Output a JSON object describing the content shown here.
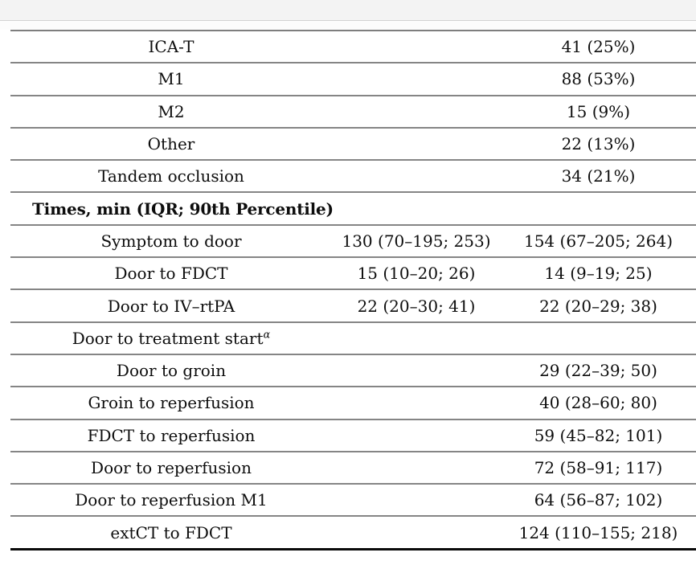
{
  "colors": {
    "rule": "#858585",
    "heavy_bottom_rule": "#0a0a0a",
    "top_band_bg": "#f3f3f3",
    "top_band_border": "#d2d2d2",
    "text": "#0d0d0d"
  },
  "table": {
    "section_header": "Times, min (IQR; 90th Percentile)",
    "rows": [
      {
        "label": "ICA-T",
        "col2": "",
        "col3": "41 (25%)"
      },
      {
        "label": "M1",
        "col2": "",
        "col3": "88 (53%)"
      },
      {
        "label": "M2",
        "col2": "",
        "col3": "15 (9%)"
      },
      {
        "label": "Other",
        "col2": "",
        "col3": "22 (13%)"
      },
      {
        "label": "Tandem occlusion",
        "col2": "",
        "col3": "34 (21%)"
      },
      {
        "label": "Times, min (IQR; 90th Percentile)",
        "col2": "",
        "col3": ""
      },
      {
        "label": "Symptom to door",
        "col2": "130 (70–195; 253)",
        "col3": "154 (67–205; 264)"
      },
      {
        "label": "Door to FDCT",
        "col2": "15 (10–20; 26)",
        "col3": "14 (9–19; 25)"
      },
      {
        "label": "Door to IV–rtPA",
        "col2": "22 (20–30; 41)",
        "col3": "22 (20–29; 38)"
      },
      {
        "label": "Door to treatment start",
        "sup": "α",
        "col2": "",
        "col3": ""
      },
      {
        "label": "Door to groin",
        "col2": "",
        "col3": "29 (22–39; 50)"
      },
      {
        "label": "Groin to reperfusion",
        "col2": "",
        "col3": "40 (28–60; 80)"
      },
      {
        "label": "FDCT to reperfusion",
        "col2": "",
        "col3": "59 (45–82; 101)"
      },
      {
        "label": "Door to reperfusion",
        "col2": "",
        "col3": "72 (58–91; 117)"
      },
      {
        "label": "Door to reperfusion M1",
        "col2": "",
        "col3": "64 (56–87; 102)"
      },
      {
        "label": "extCT to FDCT",
        "col2": "",
        "col3": "124 (110–155; 218)"
      }
    ]
  }
}
